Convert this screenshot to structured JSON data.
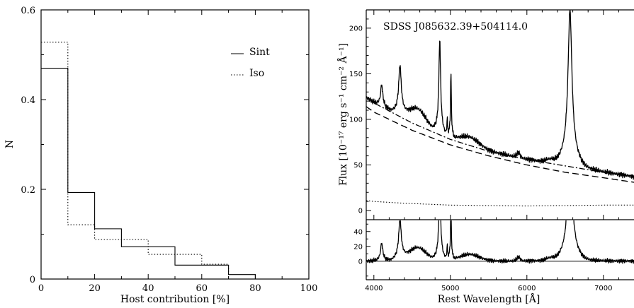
{
  "chart_data": [
    {
      "type": "bar",
      "subtype": "step-histogram",
      "xlabel": "Host contribution [%]",
      "ylabel": "N",
      "xlim": [
        0,
        100
      ],
      "ylim": [
        0,
        0.6
      ],
      "xticks": [
        0,
        20,
        40,
        60,
        80,
        100
      ],
      "yticks": [
        0,
        0.2,
        0.4,
        0.6
      ],
      "bin_edges": [
        0,
        10,
        20,
        30,
        40,
        50,
        60,
        70,
        80
      ],
      "series": [
        {
          "name": "Sint",
          "style": "solid",
          "values": [
            0.47,
            0.193,
            0.112,
            0.072,
            0.072,
            0.031,
            0.031,
            0.01
          ]
        },
        {
          "name": "Iso",
          "style": "dotted",
          "values": [
            0.528,
            0.121,
            0.088,
            0.088,
            0.055,
            0.055,
            0.033,
            0.0
          ]
        }
      ],
      "legend_position": "top-right"
    },
    {
      "type": "line",
      "title": "SDSS J085632.39+504114.0",
      "xlabel": "Rest Wavelength [Å]",
      "ylabel": "Flux [10⁻¹⁷ erg s⁻¹ cm⁻² Å⁻¹]",
      "xlim": [
        3900,
        7400
      ],
      "ylim": [
        -10,
        220
      ],
      "xticks": [
        4000,
        5000,
        6000,
        7000
      ],
      "yticks": [
        0,
        50,
        100,
        150,
        200
      ],
      "residual_panel": {
        "ylim": [
          -25,
          55
        ],
        "yticks": [
          0,
          20,
          40
        ]
      },
      "emission_lines": [
        {
          "wavelength": 4102,
          "peak": 138
        },
        {
          "wavelength": 4341,
          "peak": 157
        },
        {
          "wavelength": 4861,
          "peak": 187
        },
        {
          "wavelength": 4959,
          "peak": 98
        },
        {
          "wavelength": 5007,
          "peak": 150
        },
        {
          "wavelength": 6563,
          "peak": 220
        }
      ],
      "series": [
        {
          "style": "solid",
          "kind": "observed spectrum"
        },
        {
          "style": "dash-dot",
          "kind": "model continuum",
          "x": [
            3900,
            4000,
            4500,
            5000,
            5500,
            6000,
            6500,
            7000,
            7400
          ],
          "y": [
            124,
            118,
            96,
            78,
            65,
            56,
            49,
            42,
            37
          ]
        },
        {
          "style": "dashed",
          "kind": "power-law component",
          "x": [
            3900,
            4000,
            4500,
            5000,
            5500,
            6000,
            6500,
            7000,
            7400
          ],
          "y": [
            114,
            108,
            88,
            72,
            60,
            50,
            42,
            36,
            31
          ]
        },
        {
          "style": "dotted",
          "kind": "host galaxy component",
          "x": [
            3900,
            4000,
            4400,
            5000,
            6000,
            7000,
            7400
          ],
          "y": [
            11,
            10,
            8,
            6,
            5,
            6,
            6
          ]
        }
      ]
    }
  ]
}
